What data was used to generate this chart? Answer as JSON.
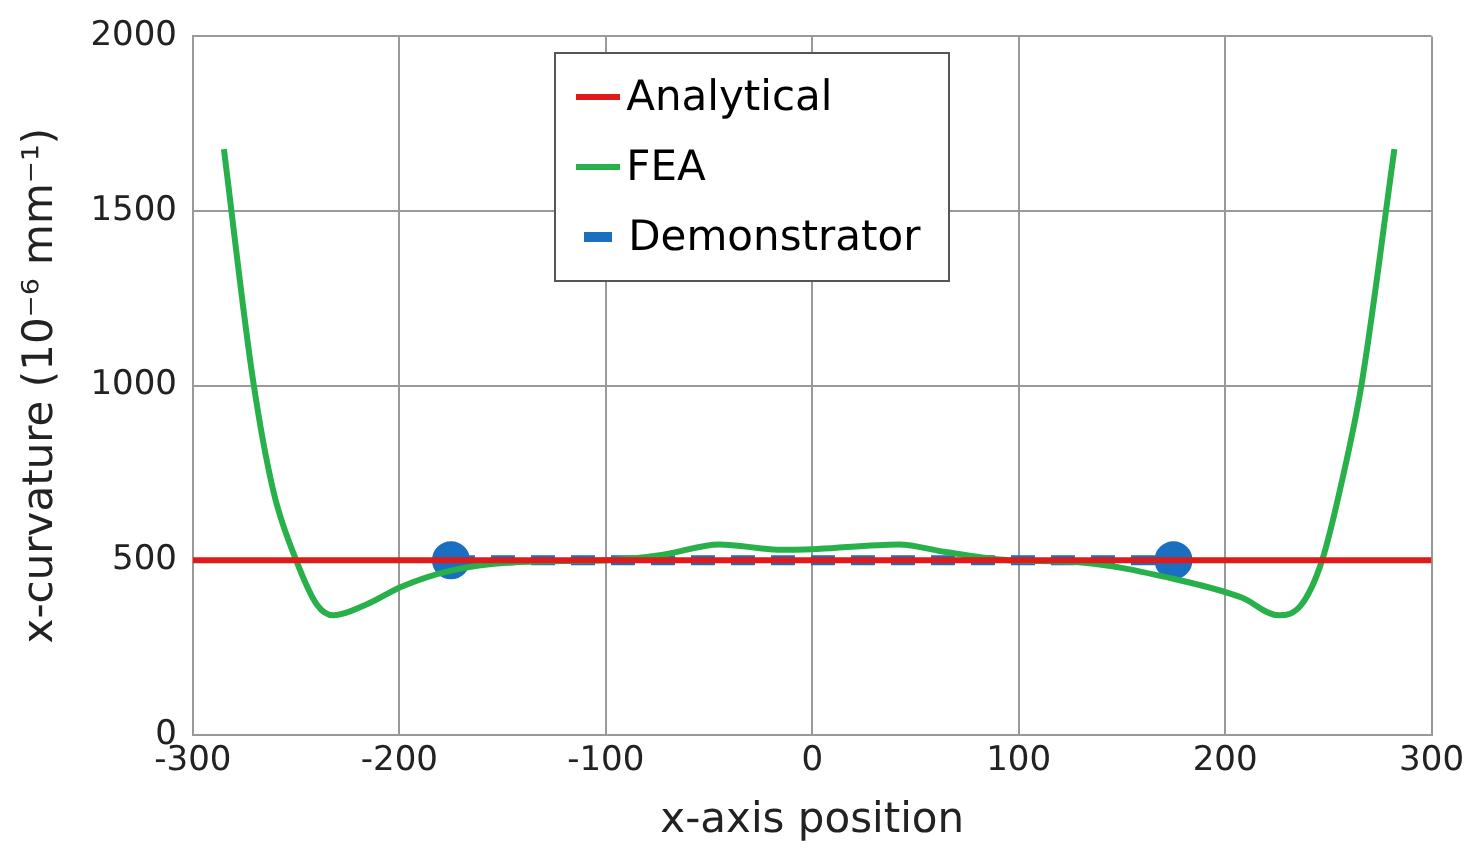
{
  "chart_data": {
    "type": "line",
    "xlabel": "x-axis position",
    "ylabel": "x-curvature (10⁻⁶ mm⁻¹)",
    "xlim": [
      -300,
      300
    ],
    "xticks": [
      -300,
      -200,
      -100,
      0,
      100,
      200,
      300
    ],
    "ylim": [
      0,
      2000
    ],
    "yticks": [
      0,
      500,
      1000,
      1500,
      2000
    ],
    "grid": true,
    "legend": "top",
    "series": [
      {
        "name": "Analytical",
        "color": "#e0191b",
        "x": [
          -300,
          300
        ],
        "values": [
          500,
          500
        ]
      },
      {
        "name": "FEA",
        "color": "#28b04a",
        "x": [
          -285,
          -271,
          -261,
          -250,
          -240,
          -232,
          -216,
          -199,
          -175,
          -144,
          -100,
          -73,
          -45,
          -15,
          -8,
          42,
          64,
          95,
          129,
          177,
          208,
          226,
          237,
          247,
          257,
          266,
          282
        ],
        "values": [
          1677,
          1020,
          697,
          500,
          373,
          342,
          373,
          424,
          470,
          494,
          500,
          515,
          545,
          530,
          530,
          545,
          524,
          500,
          494,
          444,
          393,
          342,
          373,
          500,
          737,
          1000,
          1677
        ]
      },
      {
        "name": "Demonstrator",
        "color": "#1a6fc0",
        "x": [
          -175,
          175
        ],
        "values": [
          500,
          500
        ],
        "marker": "circle",
        "line_style": "dashed"
      }
    ]
  }
}
